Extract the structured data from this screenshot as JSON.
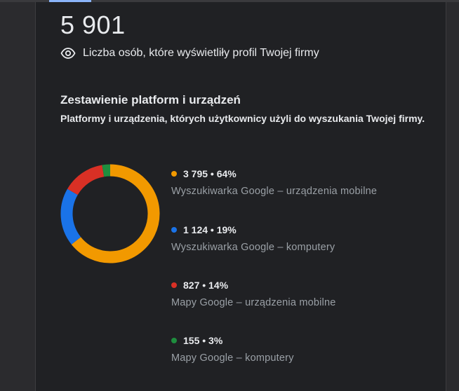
{
  "colors": {
    "mobile_search": "#f29900",
    "desktop_search": "#1a73e8",
    "mobile_maps": "#d93025",
    "desktop_maps": "#1e8e3e"
  },
  "summary": {
    "total": "5 901",
    "caption": "Liczba osób, które wyświetliły profil Twojej firmy",
    "icon": "eye-icon"
  },
  "section": {
    "title": "Zestawienie platform i urządzeń",
    "description": "Platformy i urządzenia, których użytkownicy użyli do wyszukania Twojej firmy."
  },
  "chart_data": {
    "type": "pie",
    "categories": [
      "Wyszukiwarka Google – urządzenia mobilne",
      "Wyszukiwarka Google – komputery",
      "Mapy Google – urządzenia mobilne",
      "Mapy Google – komputery"
    ],
    "values": [
      3795,
      1124,
      827,
      155
    ],
    "percent": [
      64,
      19,
      14,
      3
    ]
  },
  "legend": [
    {
      "value_text": "3 795 • 64%",
      "label": "Wyszukiwarka Google – urządzenia mobilne"
    },
    {
      "value_text": "1 124 • 19%",
      "label": "Wyszukiwarka Google – komputery"
    },
    {
      "value_text": "827 • 14%",
      "label": "Mapy Google – urządzenia mobilne"
    },
    {
      "value_text": "155 • 3%",
      "label": "Mapy Google – komputery"
    }
  ]
}
